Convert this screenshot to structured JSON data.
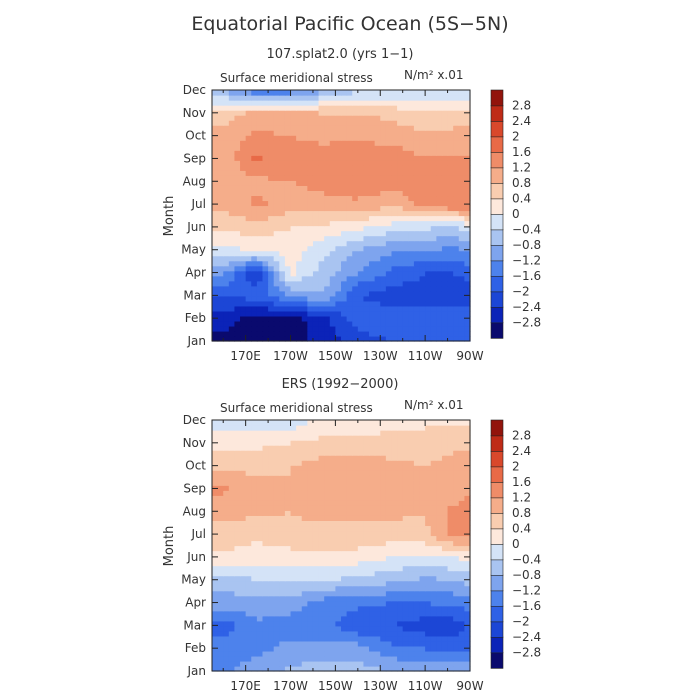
{
  "figure": {
    "title": "Equatorial Pacific Ocean (5S−5N)"
  },
  "chart_data": [
    {
      "type": "heatmap",
      "subtitle": "107.splat2.0 (yrs 1−1)",
      "field_label": "Surface meridional stress",
      "units_label": "N/m² x.01",
      "ylabel": "Month",
      "x_ticks": [
        "170E",
        "170W",
        "150W",
        "130W",
        "110W",
        "90W"
      ],
      "y_ticks": [
        "Jan",
        "Feb",
        "Mar",
        "Apr",
        "May",
        "Jun",
        "Jul",
        "Aug",
        "Sep",
        "Oct",
        "Nov",
        "Dec"
      ],
      "x_lon": [
        160,
        175,
        190,
        205,
        220,
        235,
        250,
        262,
        270
      ],
      "values": [
        [
          -3.0,
          -3.0,
          -3.0,
          -2.6,
          -2.2,
          -2.0,
          -1.9,
          -1.8,
          -1.8
        ],
        [
          -2.6,
          -3.0,
          -3.0,
          -2.5,
          -1.8,
          -1.7,
          -1.8,
          -1.7,
          -1.6
        ],
        [
          -2.0,
          -1.8,
          -1.2,
          -0.8,
          -2.0,
          -2.2,
          -2.2,
          -2.4,
          -2.3
        ],
        [
          -1.1,
          -2.4,
          0.1,
          -0.6,
          -1.2,
          -1.7,
          -2.0,
          -2.0,
          -1.8
        ],
        [
          -0.2,
          0.1,
          0.2,
          -0.3,
          -0.8,
          -1.1,
          -1.2,
          -1.3,
          -1.2
        ],
        [
          0.5,
          0.6,
          0.4,
          0.3,
          0.1,
          -0.2,
          -0.3,
          -0.5,
          -0.2
        ],
        [
          0.9,
          1.3,
          1.0,
          1.1,
          1.1,
          0.9,
          1.3,
          1.6,
          1.5
        ],
        [
          0.8,
          1.1,
          1.2,
          1.3,
          1.5,
          1.4,
          1.4,
          1.5,
          1.5
        ],
        [
          0.9,
          1.7,
          1.3,
          1.4,
          1.6,
          1.5,
          1.2,
          1.3,
          1.2
        ],
        [
          1.0,
          1.3,
          1.2,
          1.1,
          1.1,
          1.0,
          0.9,
          0.9,
          1.0
        ],
        [
          0.6,
          0.9,
          0.9,
          0.8,
          0.8,
          0.7,
          0.5,
          0.6,
          0.5
        ],
        [
          -0.8,
          -1.6,
          -1.5,
          -0.9,
          -0.5,
          -0.5,
          -0.4,
          -0.4,
          -0.4
        ]
      ],
      "colorbar": {
        "levels": [
          -3.2,
          -2.8,
          -2.4,
          -2.0,
          -1.6,
          -1.2,
          -0.8,
          -0.4,
          0.0,
          0.4,
          0.8,
          1.2,
          1.6,
          2.0,
          2.4,
          2.8,
          3.2
        ],
        "labels": [
          "−2.8",
          "−2.4",
          "−2",
          "−1.6",
          "−1.2",
          "−0.8",
          "−0.4",
          "0",
          "0.4",
          "0.8",
          "1.2",
          "1.6",
          "2",
          "2.4",
          "2.8"
        ]
      }
    },
    {
      "type": "heatmap",
      "subtitle": "ERS (1992−2000)",
      "field_label": "Surface meridional stress",
      "units_label": "N/m² x.01",
      "ylabel": "Month",
      "x_ticks": [
        "170E",
        "170W",
        "150W",
        "130W",
        "110W",
        "90W"
      ],
      "y_ticks": [
        "Jan",
        "Feb",
        "Mar",
        "Apr",
        "May",
        "Jun",
        "Jul",
        "Aug",
        "Sep",
        "Oct",
        "Nov",
        "Dec"
      ],
      "x_lon": [
        160,
        175,
        190,
        205,
        220,
        235,
        250,
        262,
        270
      ],
      "values": [
        [
          -1.3,
          -1.0,
          -0.7,
          -0.6,
          -0.6,
          -0.8,
          -0.9,
          -0.9,
          -0.9
        ],
        [
          -1.4,
          -1.3,
          -1.1,
          -1.0,
          -1.0,
          -1.5,
          -1.6,
          -1.7,
          -1.6
        ],
        [
          -1.8,
          -1.3,
          -1.4,
          -1.5,
          -1.9,
          -2.0,
          -2.2,
          -2.3,
          -2.0
        ],
        [
          -1.0,
          -0.9,
          -1.0,
          -1.4,
          -1.5,
          -1.6,
          -1.6,
          -1.5,
          -1.4
        ],
        [
          -0.6,
          -0.4,
          -0.3,
          -0.4,
          -0.5,
          -0.7,
          -0.9,
          -0.8,
          -0.6
        ],
        [
          0.3,
          0.2,
          0.2,
          0.3,
          0.2,
          0.0,
          -0.1,
          0.0,
          0.1
        ],
        [
          0.7,
          0.5,
          0.7,
          0.7,
          0.7,
          0.6,
          0.7,
          1.3,
          1.3
        ],
        [
          0.9,
          0.9,
          0.8,
          0.9,
          0.9,
          0.9,
          0.8,
          1.3,
          1.4
        ],
        [
          1.3,
          0.9,
          0.8,
          1.0,
          1.0,
          0.8,
          0.8,
          0.9,
          1.2
        ],
        [
          0.7,
          0.7,
          0.8,
          1.0,
          1.0,
          0.9,
          0.8,
          0.9,
          1.2
        ],
        [
          0.2,
          0.3,
          0.4,
          0.5,
          0.5,
          0.6,
          0.6,
          0.7,
          0.7
        ],
        [
          -0.2,
          -0.2,
          -0.3,
          0.2,
          0.2,
          0.2,
          0.3,
          0.3,
          0.3
        ]
      ],
      "colorbar": {
        "levels": [
          -3.2,
          -2.8,
          -2.4,
          -2.0,
          -1.6,
          -1.2,
          -0.8,
          -0.4,
          0.0,
          0.4,
          0.8,
          1.2,
          1.6,
          2.0,
          2.4,
          2.8,
          3.2
        ],
        "labels": [
          "−2.8",
          "−2.4",
          "−2",
          "−1.6",
          "−1.2",
          "−0.8",
          "−0.4",
          "0",
          "0.4",
          "0.8",
          "1.2",
          "1.6",
          "2",
          "2.4",
          "2.8"
        ]
      }
    }
  ],
  "colors": {
    "palette": [
      "#0a0a6e",
      "#0b23b8",
      "#1c46d6",
      "#2f61e6",
      "#4d82ec",
      "#7ea4ee",
      "#a9c4f1",
      "#d4e3f7",
      "#fde8dc",
      "#f9cdb0",
      "#f5ad8a",
      "#ef8c68",
      "#e86a47",
      "#d9482b",
      "#bf2b17",
      "#92140c"
    ],
    "frame": "#222222"
  }
}
